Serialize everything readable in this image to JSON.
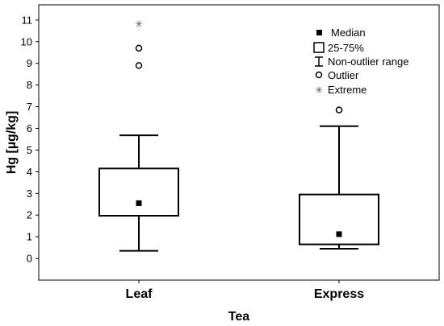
{
  "chart_data": {
    "type": "boxplot",
    "xlabel": "Tea",
    "ylabel": "Hg [µg/kg]",
    "ylim": [
      -1,
      11.7
    ],
    "yticks": [
      0,
      1,
      2,
      3,
      4,
      5,
      6,
      7,
      8,
      9,
      10,
      11
    ],
    "grid": false,
    "legend_position": "top-right",
    "categories": [
      "Leaf",
      "Express"
    ],
    "boxes": [
      {
        "category": "Leaf",
        "median": 2.55,
        "q1": 1.97,
        "q3": 4.15,
        "whisker_low": 0.35,
        "whisker_high": 5.68,
        "outliers": [
          8.9,
          9.7
        ],
        "extremes": [
          10.8
        ]
      },
      {
        "category": "Express",
        "median": 1.12,
        "q1": 0.65,
        "q3": 2.95,
        "whisker_low": 0.45,
        "whisker_high": 6.1,
        "outliers": [
          6.85
        ],
        "extremes": []
      }
    ],
    "legend": [
      "Median",
      "25-75%",
      "Non-outlier range",
      "Outlier",
      "Extreme"
    ]
  }
}
